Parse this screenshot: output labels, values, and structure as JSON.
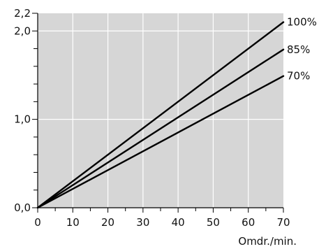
{
  "chart_data": {
    "type": "line",
    "title": "",
    "xlabel": "Omdr./min.",
    "ylabel": "",
    "xlim": [
      0,
      70
    ],
    "ylim": [
      0,
      2.2
    ],
    "x_ticks": [
      0,
      10,
      20,
      30,
      40,
      50,
      60,
      70
    ],
    "x_tick_labels": [
      "0",
      "10",
      "20",
      "30",
      "40",
      "50",
      "60",
      "70"
    ],
    "x_minor_step": 5,
    "y_ticks": [
      0,
      1.0,
      2.0,
      2.2
    ],
    "y_tick_labels": [
      "0,0",
      "1,0",
      "2,0",
      "2,2"
    ],
    "y_minor_step": 0.2,
    "grid": true,
    "plot_background": "#d6d6d6",
    "grid_color": "#ffffff",
    "line_color": "#000000",
    "series": [
      {
        "name": "100%",
        "x": [
          0,
          70
        ],
        "y": [
          0,
          2.1
        ]
      },
      {
        "name": "85%",
        "x": [
          0,
          70
        ],
        "y": [
          0,
          1.79
        ]
      },
      {
        "name": "70%",
        "x": [
          0,
          70
        ],
        "y": [
          0,
          1.49
        ]
      }
    ]
  }
}
